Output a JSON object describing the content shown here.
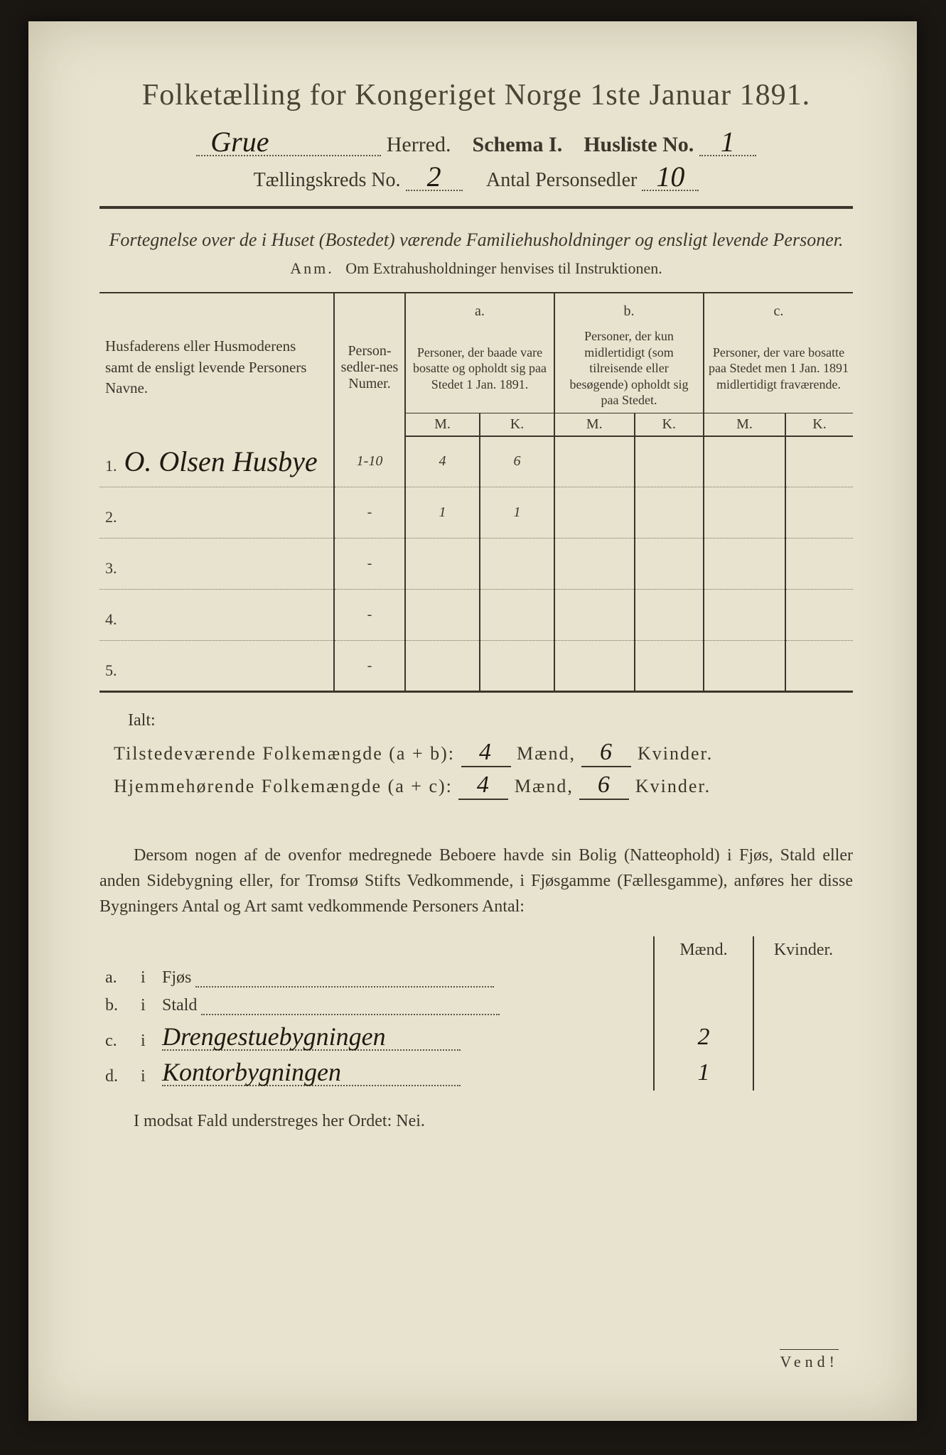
{
  "colors": {
    "paper_bg": "#e8e3ce",
    "page_bg": "#1a1612",
    "ink": "#3a362c",
    "hand_ink": "#1e1a12",
    "faint_pencil": "#9a9378",
    "dotted": "#5a5444"
  },
  "typography": {
    "title_fontsize_pt": 32,
    "body_fontsize_pt": 18,
    "hand_font": "Brush Script MT"
  },
  "title": "Folketælling for Kongeriget Norge 1ste Januar 1891.",
  "header": {
    "herred_value": "Grue",
    "herred_label": "Herred.",
    "schema_label": "Schema I.",
    "husliste_label": "Husliste No.",
    "husliste_value": "1",
    "kreds_label": "Tællingskreds No.",
    "kreds_value": "2",
    "antal_label": "Antal Personsedler",
    "antal_value": "10"
  },
  "intro": {
    "line": "Fortegnelse over de i Huset (Bostedet) værende Familiehusholdninger og ensligt levende Personer.",
    "anm_label": "Anm.",
    "anm_text": "Om Extrahusholdninger henvises til Instruktionen."
  },
  "table": {
    "col_names_label": "Husfaderens eller Husmoderens samt de ensligt levende Personers Navne.",
    "col_numer_label": "Person-sedler-nes Numer.",
    "group_a_letter": "a.",
    "group_a_label": "Personer, der baade vare bosatte og opholdt sig paa Stedet 1 Jan. 1891.",
    "group_b_letter": "b.",
    "group_b_label": "Personer, der kun midlertidigt (som tilreisende eller besøgende) opholdt sig paa Stedet.",
    "group_c_letter": "c.",
    "group_c_label": "Personer, der vare bosatte paa Stedet men 1 Jan. 1891 midlertidigt fraværende.",
    "m_label": "M.",
    "k_label": "K.",
    "rows": [
      {
        "num": "1.",
        "name": "O. Olsen Husbye",
        "numer": "1-10",
        "a_m": "4",
        "a_k": "6",
        "b_m": "",
        "b_k": "",
        "c_m": "",
        "c_k": ""
      },
      {
        "num": "2.",
        "name": "",
        "numer": "-",
        "a_m": "1",
        "a_k": "1",
        "b_m": "",
        "b_k": "",
        "c_m": "",
        "c_k": "",
        "faint": true
      },
      {
        "num": "3.",
        "name": "",
        "numer": "-",
        "a_m": "",
        "a_k": "",
        "b_m": "",
        "b_k": "",
        "c_m": "",
        "c_k": ""
      },
      {
        "num": "4.",
        "name": "",
        "numer": "-",
        "a_m": "",
        "a_k": "",
        "b_m": "",
        "b_k": "",
        "c_m": "",
        "c_k": ""
      },
      {
        "num": "5.",
        "name": "",
        "numer": "-",
        "a_m": "",
        "a_k": "",
        "b_m": "",
        "b_k": "",
        "c_m": "",
        "c_k": ""
      }
    ]
  },
  "totals": {
    "ialt_label": "Ialt:",
    "present_label": "Tilstedeværende Folkemængde (a + b):",
    "resident_label": "Hjemmehørende Folkemængde (a + c):",
    "maend_label": "Mænd,",
    "kvinder_label": "Kvinder.",
    "present_m": "4",
    "present_k": "6",
    "resident_m": "4",
    "resident_k": "6"
  },
  "paragraph": "Dersom nogen af de ovenfor medregnede Beboere havde sin Bolig (Natteophold) i Fjøs, Stald eller anden Sidebygning eller, for Tromsø Stifts Vedkommende, i Fjøsgamme (Fællesgamme), anføres her disse Bygningers Antal og Art samt vedkommende Personers Antal:",
  "dwellings": {
    "maend_label": "Mænd.",
    "kvinder_label": "Kvinder.",
    "rows": [
      {
        "letter": "a.",
        "i": "i",
        "label": "Fjøs",
        "hand": "",
        "m": "",
        "k": ""
      },
      {
        "letter": "b.",
        "i": "i",
        "label": "Stald",
        "hand": "",
        "m": "",
        "k": ""
      },
      {
        "letter": "c.",
        "i": "i",
        "label": "",
        "hand": "Drengestuebygningen",
        "m": "2",
        "k": ""
      },
      {
        "letter": "d.",
        "i": "i",
        "label": "",
        "hand": "Kontorbygningen",
        "m": "1",
        "k": ""
      }
    ]
  },
  "footer": {
    "line": "I modsat Fald understreges her Ordet: Nei.",
    "vend": "Vend!"
  }
}
